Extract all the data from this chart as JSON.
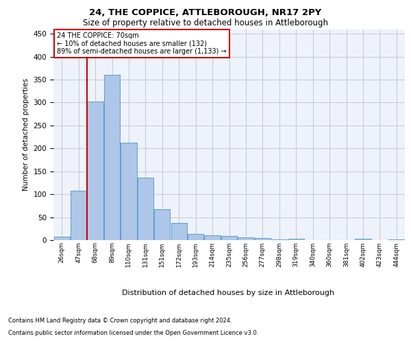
{
  "title1": "24, THE COPPICE, ATTLEBOROUGH, NR17 2PY",
  "title2": "Size of property relative to detached houses in Attleborough",
  "xlabel": "Distribution of detached houses by size in Attleborough",
  "ylabel": "Number of detached properties",
  "footnote1": "Contains HM Land Registry data © Crown copyright and database right 2024.",
  "footnote2": "Contains public sector information licensed under the Open Government Licence v3.0.",
  "bar_labels": [
    "26sqm",
    "47sqm",
    "68sqm",
    "89sqm",
    "110sqm",
    "131sqm",
    "151sqm",
    "172sqm",
    "193sqm",
    "214sqm",
    "235sqm",
    "256sqm",
    "277sqm",
    "298sqm",
    "319sqm",
    "340sqm",
    "360sqm",
    "381sqm",
    "402sqm",
    "423sqm",
    "444sqm"
  ],
  "bar_values": [
    8,
    108,
    302,
    360,
    212,
    136,
    68,
    38,
    13,
    10,
    9,
    6,
    4,
    1,
    3,
    0,
    0,
    0,
    3,
    0,
    2
  ],
  "bar_color": "#aec6e8",
  "bar_edge_color": "#5a9fd4",
  "grid_color": "#cccccc",
  "bg_color": "#eef2fb",
  "vline_color": "#cc0000",
  "annotation_text": "24 THE COPPICE: 70sqm\n← 10% of detached houses are smaller (132)\n89% of semi-detached houses are larger (1,133) →",
  "annotation_box_color": "#cc0000",
  "ylim": [
    0,
    460
  ],
  "yticks": [
    0,
    50,
    100,
    150,
    200,
    250,
    300,
    350,
    400,
    450
  ],
  "vline_pos": 1.5
}
